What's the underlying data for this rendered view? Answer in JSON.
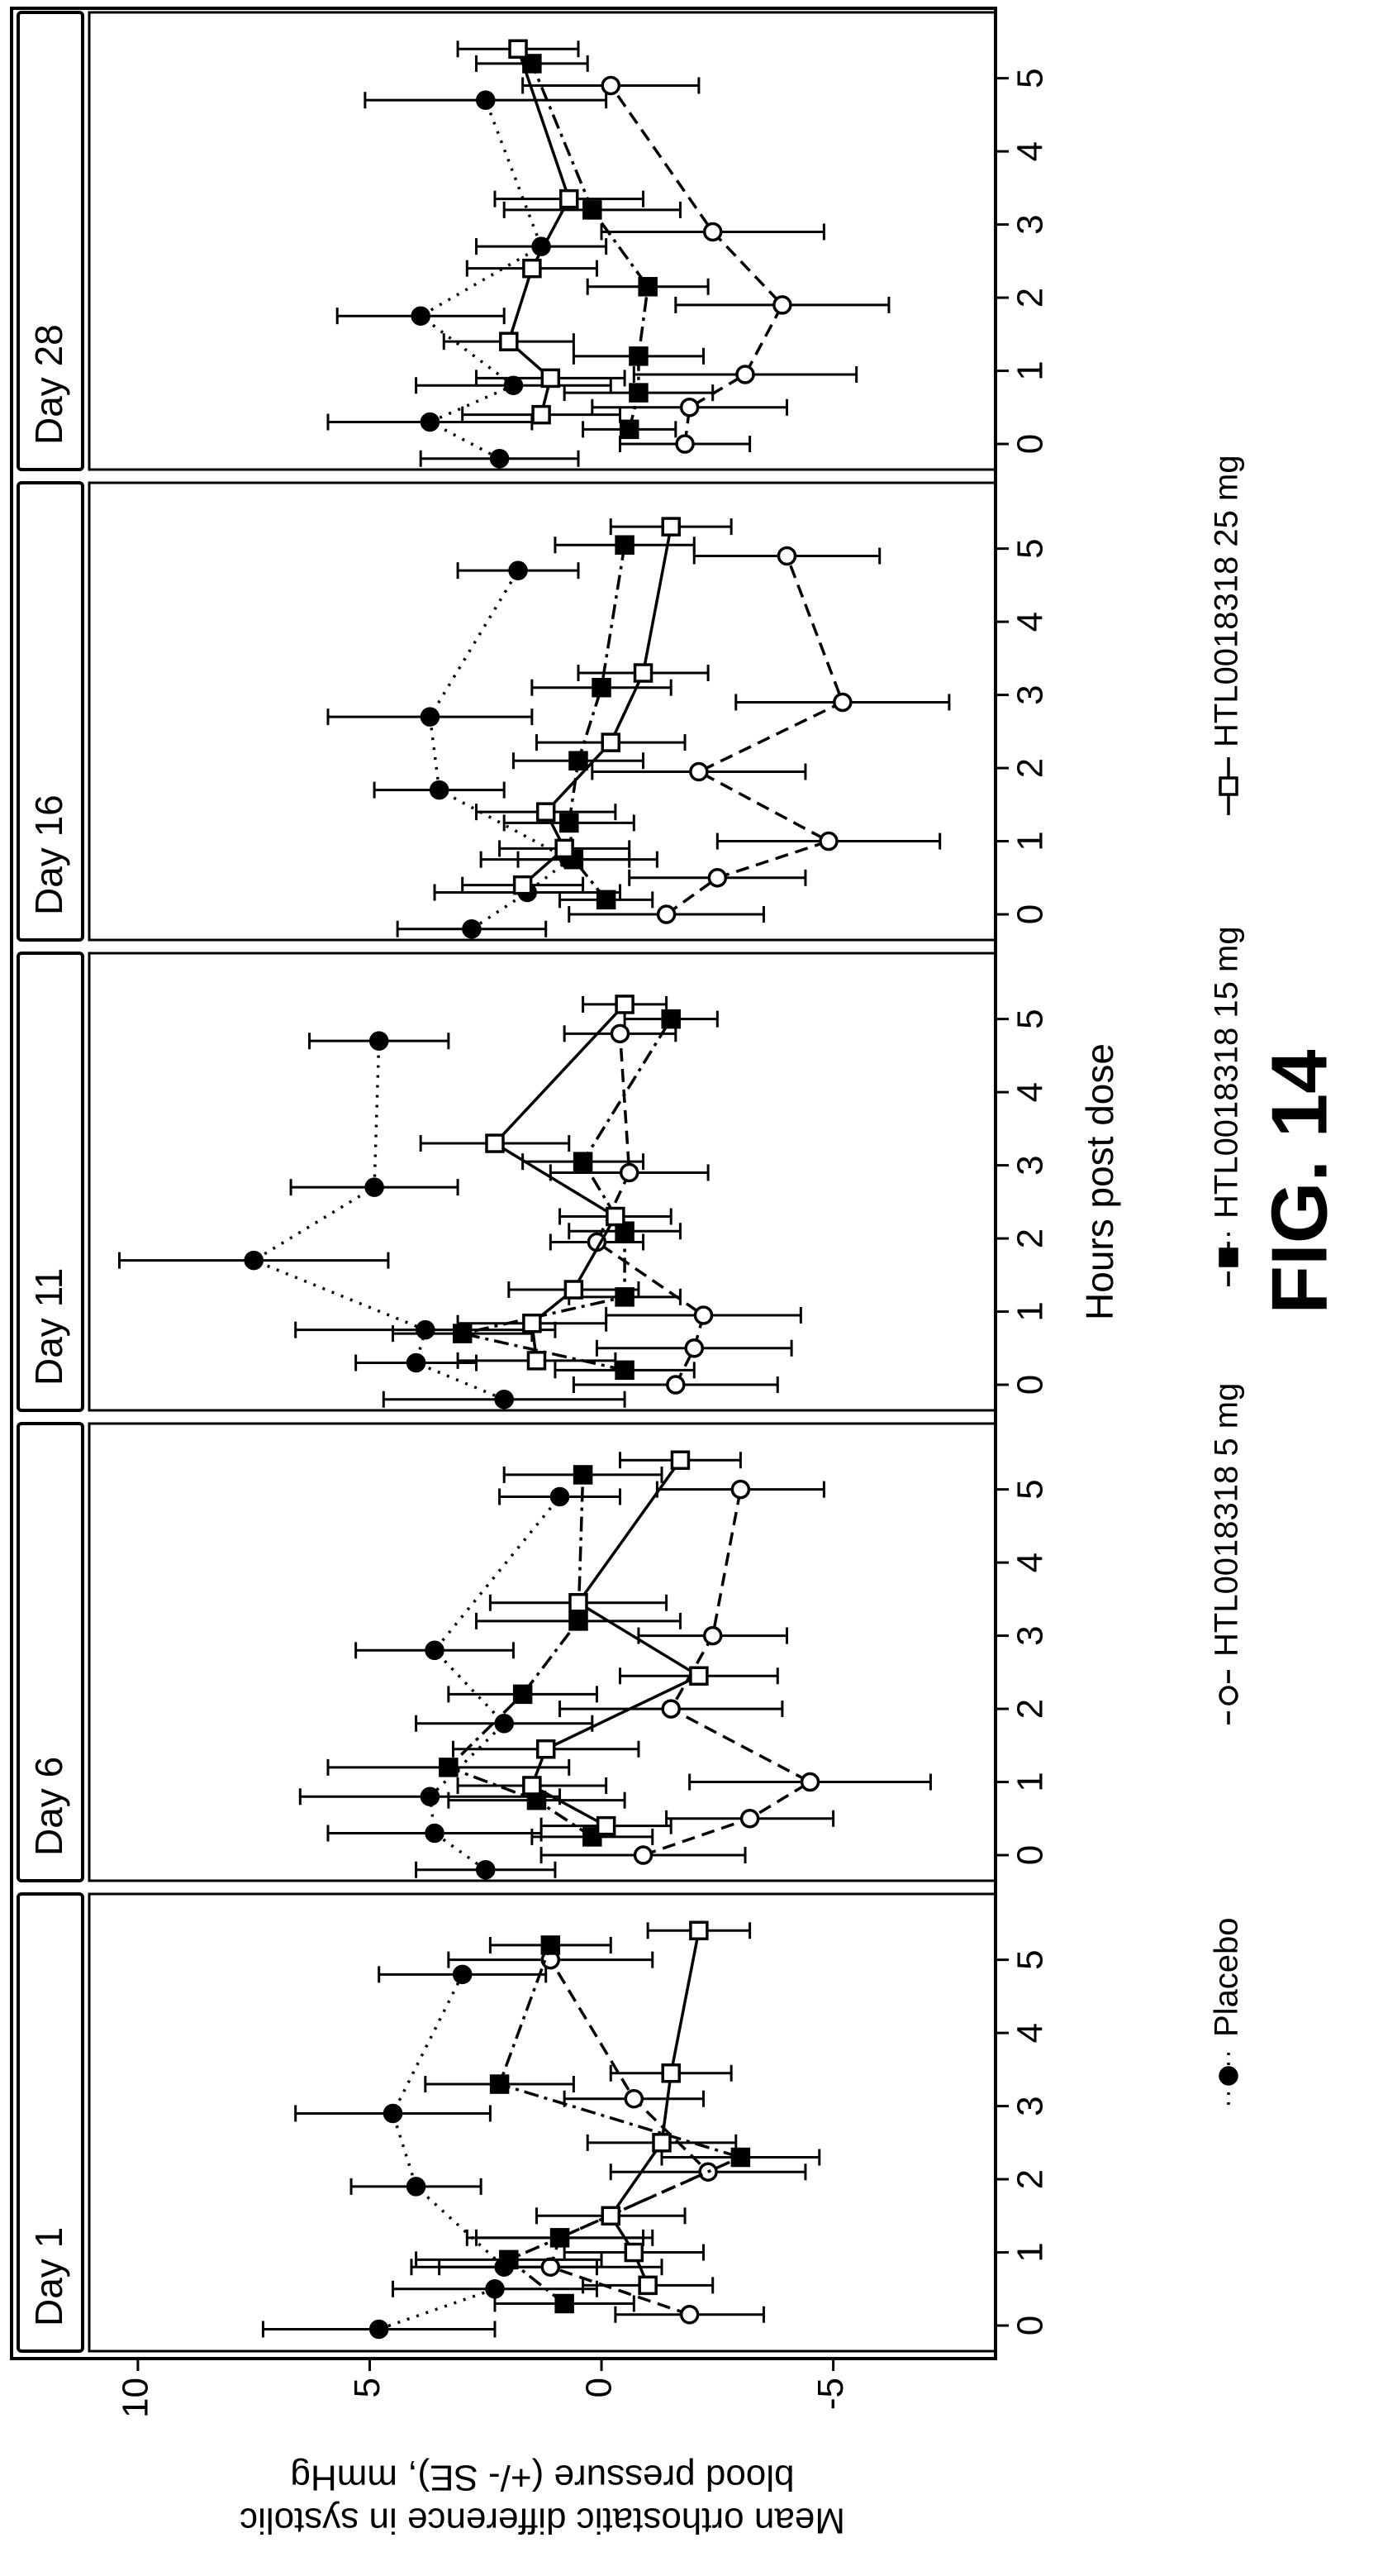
{
  "chart_data": {
    "type": "line",
    "xlabel": "Hours post dose",
    "ylabel": [
      "Mean orthostatic difference in systolic",
      "blood pressure (+/- SE), mmHg"
    ],
    "caption": "FIG. 14",
    "ylim": [
      -8.5,
      11.05
    ],
    "yticks": [
      10,
      5,
      0,
      -5
    ],
    "xlim": [
      -0.35,
      5.9
    ],
    "xticks": [
      0,
      1,
      2,
      3,
      4,
      5
    ],
    "color": "#000000",
    "series": [
      {
        "name": "Placebo",
        "marker": "filled-circle",
        "dash": "3,9"
      },
      {
        "name": "HTL0018318 5 mg",
        "marker": "open-circle",
        "dash": "16,9"
      },
      {
        "name": "HTL0018318 15 mg",
        "marker": "filled-square",
        "dash": "18,7,4,7"
      },
      {
        "name": "HTL0018318 25 mg",
        "marker": "open-square",
        "dash": "none"
      }
    ],
    "panels": [
      {
        "title": "Day 1",
        "data": [
          {
            "x": [
              -0.05,
              0.5,
              0.8,
              1.9,
              2.9,
              4.8
            ],
            "values": [
              4.8,
              2.3,
              2.1,
              4.0,
              4.5,
              3.0
            ],
            "errors": [
              2.5,
              2.2,
              2.0,
              1.4,
              2.1,
              1.8
            ]
          },
          {
            "x": [
              0.15,
              0.8,
              1.2,
              2.1,
              3.1,
              5.0
            ],
            "values": [
              -1.9,
              1.1,
              0.9,
              -2.3,
              -0.7,
              1.1
            ],
            "errors": [
              1.6,
              2.4,
              2.0,
              2.1,
              1.5,
              2.2
            ]
          },
          {
            "x": [
              0.3,
              0.9,
              1.2,
              2.3,
              3.3,
              5.2
            ],
            "values": [
              0.8,
              2.0,
              0.9,
              -3.0,
              2.2,
              1.1
            ],
            "errors": [
              1.5,
              2.0,
              1.8,
              1.7,
              1.6,
              1.3
            ]
          },
          {
            "x": [
              0.55,
              1.0,
              1.5,
              2.5,
              3.45,
              5.4
            ],
            "values": [
              -1.0,
              -0.7,
              -0.2,
              -1.3,
              -1.5,
              -2.1
            ],
            "errors": [
              1.4,
              1.5,
              1.6,
              1.6,
              1.3,
              1.1
            ]
          }
        ]
      },
      {
        "title": "Day 6",
        "data": [
          {
            "x": [
              -0.2,
              0.3,
              0.8,
              1.8,
              2.8,
              4.9
            ],
            "values": [
              2.5,
              3.6,
              3.7,
              2.1,
              3.6,
              0.9
            ],
            "errors": [
              1.5,
              2.3,
              2.8,
              1.9,
              1.7,
              1.3
            ]
          },
          {
            "x": [
              0.0,
              0.5,
              1.0,
              2.0,
              3.0,
              5.0
            ],
            "values": [
              -0.9,
              -3.2,
              -4.5,
              -1.5,
              -2.4,
              -3.0
            ],
            "errors": [
              2.2,
              1.8,
              2.6,
              2.4,
              1.6,
              1.8
            ]
          },
          {
            "x": [
              0.25,
              0.75,
              1.2,
              2.2,
              3.2,
              5.2
            ],
            "values": [
              0.2,
              1.4,
              3.3,
              1.7,
              0.5,
              0.4
            ],
            "errors": [
              1.3,
              1.9,
              2.6,
              1.6,
              2.2,
              1.7
            ]
          },
          {
            "x": [
              0.4,
              0.95,
              1.45,
              2.45,
              3.45,
              5.4
            ],
            "values": [
              -0.1,
              1.5,
              1.2,
              -2.1,
              0.5,
              -1.7
            ],
            "errors": [
              1.4,
              1.6,
              2.0,
              1.7,
              1.9,
              1.3
            ]
          }
        ]
      },
      {
        "title": "Day 11",
        "data": [
          {
            "x": [
              -0.2,
              0.3,
              0.75,
              1.7,
              2.7,
              4.7
            ],
            "values": [
              2.1,
              4.0,
              3.8,
              7.5,
              4.9,
              4.8
            ],
            "errors": [
              2.6,
              1.3,
              2.8,
              2.9,
              1.8,
              1.5
            ]
          },
          {
            "x": [
              0.0,
              0.5,
              0.95,
              1.95,
              2.9,
              4.8
            ],
            "values": [
              -1.6,
              -2.0,
              -2.2,
              0.1,
              -0.6,
              -0.4
            ],
            "errors": [
              2.2,
              2.1,
              2.1,
              1.0,
              1.7,
              1.2
            ]
          },
          {
            "x": [
              0.2,
              0.7,
              1.2,
              2.1,
              3.05,
              5.0
            ],
            "values": [
              -0.5,
              3.0,
              -0.5,
              -0.5,
              0.4,
              -1.5
            ],
            "errors": [
              1.5,
              1.5,
              1.2,
              1.2,
              1.3,
              1.0
            ]
          },
          {
            "x": [
              0.33,
              0.84,
              1.3,
              2.3,
              3.3,
              5.2
            ],
            "values": [
              1.4,
              1.5,
              0.6,
              -0.3,
              2.3,
              -0.5
            ],
            "errors": [
              1.7,
              1.6,
              1.4,
              1.2,
              1.6,
              0.9
            ]
          }
        ]
      },
      {
        "title": "Day 16",
        "data": [
          {
            "x": [
              -0.2,
              0.3,
              0.75,
              1.7,
              2.7,
              4.7
            ],
            "values": [
              2.8,
              1.6,
              0.7,
              3.5,
              3.7,
              1.8
            ],
            "errors": [
              1.6,
              2.0,
              1.9,
              1.4,
              2.2,
              1.3
            ]
          },
          {
            "x": [
              0.0,
              0.5,
              1.0,
              1.95,
              2.9,
              4.9
            ],
            "values": [
              -1.4,
              -2.5,
              -4.9,
              -2.1,
              -5.2,
              -4.0
            ],
            "errors": [
              2.1,
              1.9,
              2.4,
              2.3,
              2.3,
              2.0
            ]
          },
          {
            "x": [
              0.2,
              0.75,
              1.25,
              2.1,
              3.1,
              5.05
            ],
            "values": [
              -0.1,
              0.6,
              0.7,
              0.5,
              0.0,
              -0.5
            ],
            "errors": [
              1.0,
              1.2,
              1.4,
              1.4,
              1.5,
              1.5
            ]
          },
          {
            "x": [
              0.4,
              0.9,
              1.4,
              2.35,
              3.3,
              5.3
            ],
            "values": [
              1.7,
              0.8,
              1.2,
              -0.2,
              -0.9,
              -1.5
            ],
            "errors": [
              1.3,
              1.4,
              1.5,
              1.6,
              1.4,
              1.3
            ]
          }
        ]
      },
      {
        "title": "Day 28",
        "data": [
          {
            "x": [
              -0.2,
              0.3,
              0.8,
              1.75,
              2.7,
              4.7
            ],
            "values": [
              2.2,
              3.7,
              1.9,
              3.9,
              1.3,
              2.5
            ],
            "errors": [
              1.7,
              2.2,
              2.1,
              1.8,
              1.4,
              2.6
            ]
          },
          {
            "x": [
              0.0,
              0.5,
              0.95,
              1.9,
              2.9,
              4.9
            ],
            "values": [
              -1.8,
              -1.9,
              -3.1,
              -3.9,
              -2.4,
              -0.2
            ],
            "errors": [
              1.4,
              2.1,
              2.4,
              2.3,
              2.4,
              1.9
            ]
          },
          {
            "x": [
              0.2,
              0.7,
              1.2,
              2.15,
              3.2,
              5.2
            ],
            "values": [
              -0.6,
              -0.8,
              -0.8,
              -1.0,
              0.2,
              1.5
            ],
            "errors": [
              1.0,
              1.6,
              1.4,
              1.3,
              1.9,
              1.2
            ]
          },
          {
            "x": [
              0.4,
              0.9,
              1.4,
              2.4,
              3.35,
              5.4
            ],
            "values": [
              1.3,
              1.1,
              2.0,
              1.5,
              0.7,
              1.8
            ],
            "errors": [
              1.7,
              1.6,
              1.4,
              1.4,
              1.6,
              1.3
            ]
          }
        ]
      }
    ]
  }
}
